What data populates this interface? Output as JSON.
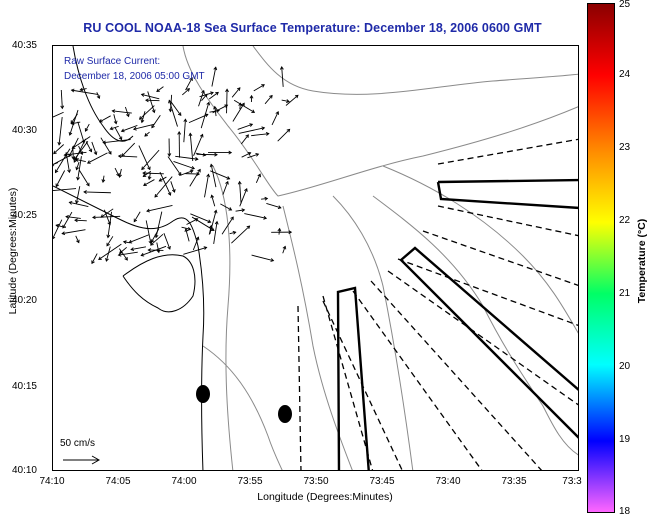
{
  "title": "RU COOL  NOAA-18  Sea Surface Temperature:  December 18, 2006 0600 GMT",
  "current_label": {
    "line1": "Raw Surface Current:",
    "line2": "December 18, 2006 05:00 GMT"
  },
  "axes": {
    "x_title": "Longitude (Degrees:Minutes)",
    "y_title": "Latitude (Degrees:Minutes)",
    "x_ticks": [
      "74:10",
      "74:05",
      "74:00",
      "73:55",
      "73:50",
      "73:45",
      "73:40",
      "73:35",
      "73:3"
    ],
    "y_ticks": [
      "40:35",
      "40:30",
      "40:25",
      "40:20",
      "40:15",
      "40:10"
    ]
  },
  "scale": {
    "label": "50 cm/s"
  },
  "colorbar": {
    "title": "Temperature (°C)",
    "ticks": [
      "25",
      "24",
      "23",
      "22",
      "21",
      "20",
      "19",
      "18"
    ],
    "colors": [
      "#8b0000",
      "#ff0000",
      "#ff8c00",
      "#ffff00",
      "#00ff66",
      "#00ffff",
      "#0000ff",
      "#ff66ff"
    ]
  }
}
